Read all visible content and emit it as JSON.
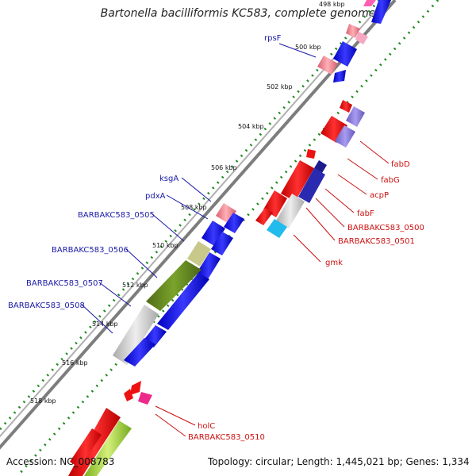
{
  "title": "Bartonella bacilliformis KC583, complete genome",
  "footer": {
    "accession": "Accession: NC_008783",
    "summary": "Topology: circular; Length: 1,445,021 bp; Genes: 1,334"
  },
  "ticks": [
    "498 kbp",
    "500 kbp",
    "502 kbp",
    "504 kbp",
    "506 kbp",
    "508 kbp",
    "510 kbp",
    "512 kbp",
    "514 kbp",
    "516 kbp",
    "518 kbp"
  ],
  "gene_labels_left": [
    "rpsF",
    "ksgA",
    "pdxA",
    "BARBAKC583_0505",
    "BARBAKC583_0506",
    "BARBAKC583_0507",
    "BARBAKC583_0508"
  ],
  "gene_labels_right": [
    "fabD",
    "fabG",
    "acpP",
    "fabF",
    "BARBAKC583_0500",
    "BARBAKC583_0501",
    "gmk",
    "holC",
    "BARBAKC583_0510"
  ],
  "colors": {
    "left_label": "#1a1aa6",
    "right_label": "#cc1111",
    "backbone": "#8a8a8a",
    "tick_dash": "#1f8a1f",
    "blue_feature": "#1010ee",
    "red_feature": "#ee1111",
    "pink_feature": "#f08a96",
    "grey_feature": "#cccccc",
    "olive_feature": "#6b8e23",
    "khaki_feature": "#c8c88a",
    "lavender_feature": "#8b7fd6",
    "navy_feature": "#1c1c8c",
    "cyan_feature": "#22bbee",
    "magenta_feature": "#ee2a8a",
    "lime_feature": "#9acd32"
  }
}
